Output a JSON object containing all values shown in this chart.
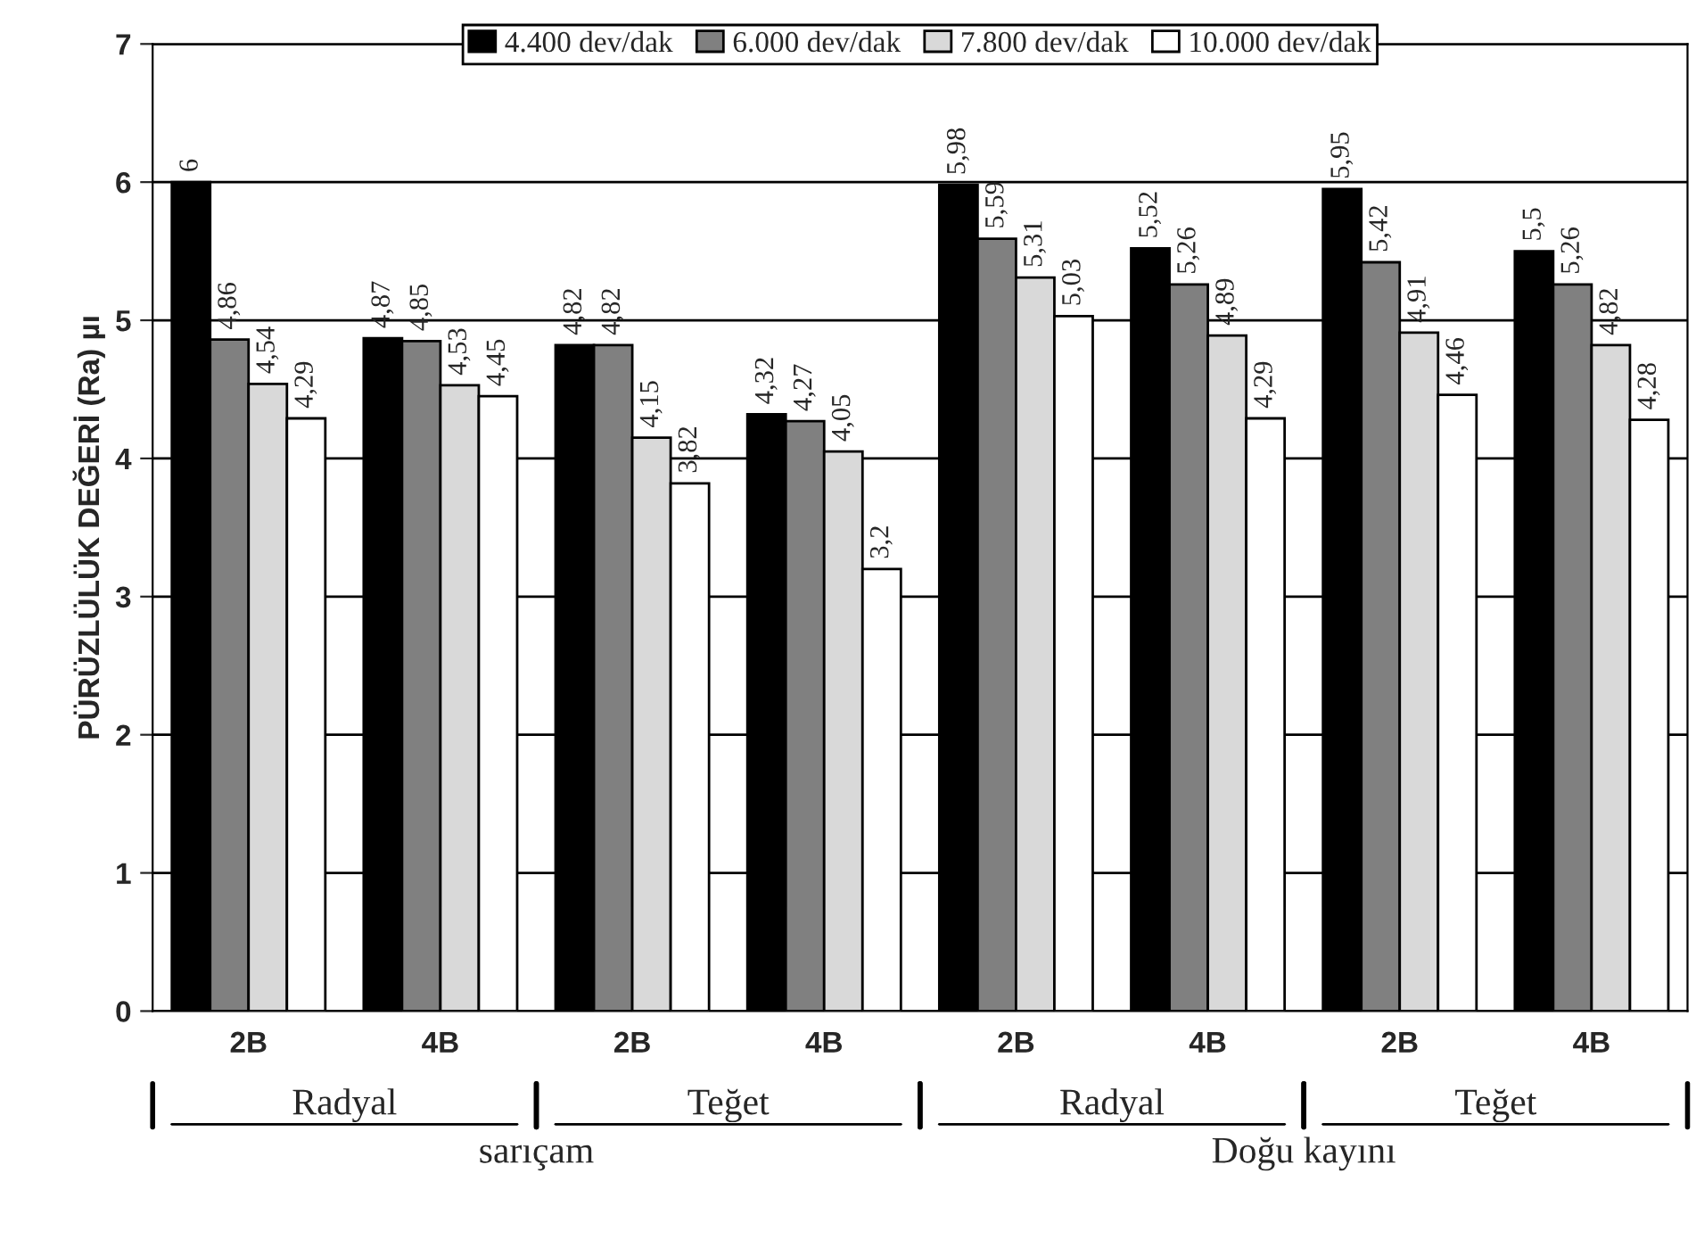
{
  "chart_data": {
    "type": "bar",
    "ylabel": "PÜRÜZLÜLÜK DEĞERİ (Ra) µı",
    "categories": [
      "2B",
      "4B",
      "2B",
      "4B",
      "2B",
      "4B",
      "2B",
      "4B"
    ],
    "series": [
      {
        "name": "4.400 dev/dak",
        "color": "#000000",
        "values": [
          6,
          4.87,
          4.82,
          4.32,
          5.98,
          5.52,
          5.95,
          5.5
        ],
        "value_labels": [
          "6",
          "4,87",
          "4,82",
          "4,32",
          "5,98",
          "5,52",
          "5,95",
          "5,5"
        ]
      },
      {
        "name": "6.000 dev/dak",
        "color": "#808080",
        "values": [
          4.86,
          4.85,
          4.82,
          4.27,
          5.59,
          5.26,
          5.42,
          5.26
        ],
        "value_labels": [
          "4,86",
          "4,85",
          "4,82",
          "4,27",
          "5,59",
          "5,26",
          "5,42",
          "5,26"
        ]
      },
      {
        "name": "7.800 dev/dak",
        "color": "#d9d9d9",
        "values": [
          4.54,
          4.53,
          4.15,
          4.05,
          5.31,
          4.89,
          4.91,
          4.82
        ],
        "value_labels": [
          "4,54",
          "4,53",
          "4,15",
          "4,05",
          "5,31",
          "4,89",
          "4,91",
          "4,82"
        ]
      },
      {
        "name": "10.000 dev/dak",
        "color": "#ffffff",
        "values": [
          4.29,
          4.45,
          3.82,
          3.2,
          5.03,
          4.29,
          4.46,
          4.28
        ],
        "value_labels": [
          "4,29",
          "4,45",
          "3,82",
          "3,2",
          "5,03",
          "4,29",
          "4,46",
          "4,28"
        ]
      }
    ],
    "ylim": [
      0,
      7
    ],
    "yticks": [
      0,
      1,
      2,
      3,
      4,
      5,
      6,
      7
    ],
    "grid": "y",
    "legend": "top",
    "annotations": [
      "Radyal",
      "Teğet",
      "Radyal",
      "Teğet",
      "sarıçam",
      "Doğu kayını"
    ]
  }
}
